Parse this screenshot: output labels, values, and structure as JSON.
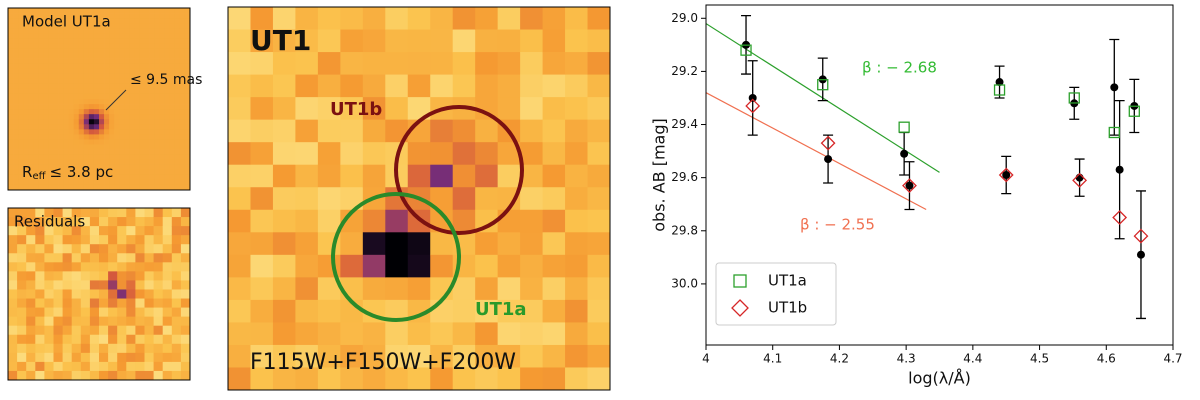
{
  "images": {
    "model_title": "Model UT1a",
    "size_label": "≤ 9.5 mas",
    "reff_label": {
      "symbol": "R",
      "subscript": "eff",
      "text": "≤ 3.8 pc"
    },
    "residuals_title": "Residuals",
    "main_title": "UT1",
    "ut1b_label": "UT1b",
    "ut1a_label": "UT1a",
    "filters_label": "F115W+F150W+F200W"
  },
  "chart_data": {
    "type": "scatter",
    "xlabel": "log(λ/Å)",
    "ylabel": "obs. AB [mag]",
    "xlim": [
      4.0,
      4.7
    ],
    "xticks": [
      4.0,
      4.1,
      4.2,
      4.3,
      4.4,
      4.5,
      4.6,
      4.7
    ],
    "ylim": [
      30.23,
      28.95
    ],
    "yticks": [
      {
        "value": 29.0,
        "label": "29.0"
      },
      29.2,
      29.4,
      29.6,
      29.8,
      {
        "value": 30.0,
        "label": "30.0"
      }
    ],
    "legend": "lower left",
    "series": [
      {
        "name": "UT1a",
        "color": "#2ca02c",
        "marker": "square",
        "x": [
          4.06,
          4.175,
          4.297,
          4.44,
          4.552,
          4.612,
          4.642
        ],
        "values": [
          29.12,
          29.25,
          29.41,
          29.27,
          29.3,
          29.43,
          29.35
        ]
      },
      {
        "name": "UT1b",
        "color": "#d62728",
        "marker": "diamond",
        "x": [
          4.07,
          4.183,
          4.305,
          4.45,
          4.56,
          4.62,
          4.652
        ],
        "values": [
          29.33,
          29.47,
          29.63,
          29.59,
          29.61,
          29.75,
          29.82
        ]
      }
    ],
    "observed": [
      {
        "color": "#000000",
        "x": [
          4.06,
          4.175,
          4.297,
          4.44,
          4.552,
          4.612,
          4.642
        ],
        "values": [
          29.1,
          29.23,
          29.51,
          29.24,
          29.32,
          29.26,
          29.33
        ],
        "errors": [
          0.11,
          0.08,
          0.08,
          0.06,
          0.06,
          0.18,
          0.1
        ]
      },
      {
        "color": "#000000",
        "x": [
          4.07,
          4.183,
          4.305,
          4.45,
          4.56,
          4.62,
          4.652
        ],
        "values": [
          29.3,
          29.53,
          29.63,
          29.59,
          29.6,
          29.57,
          29.89
        ],
        "errors": [
          0.14,
          0.09,
          0.09,
          0.07,
          0.07,
          0.26,
          0.24
        ]
      }
    ],
    "fits": [
      {
        "color": "#2ca02c",
        "x": [
          4.0,
          4.35
        ],
        "values": [
          29.02,
          29.58
        ]
      },
      {
        "color": "#f07050",
        "x": [
          4.0,
          4.33
        ],
        "values": [
          29.28,
          29.72
        ]
      }
    ],
    "annotations": [
      {
        "text": "β : − 2.68",
        "color": "#33bb33"
      },
      {
        "text": "β : − 2.55",
        "color": "#f07050"
      }
    ]
  }
}
